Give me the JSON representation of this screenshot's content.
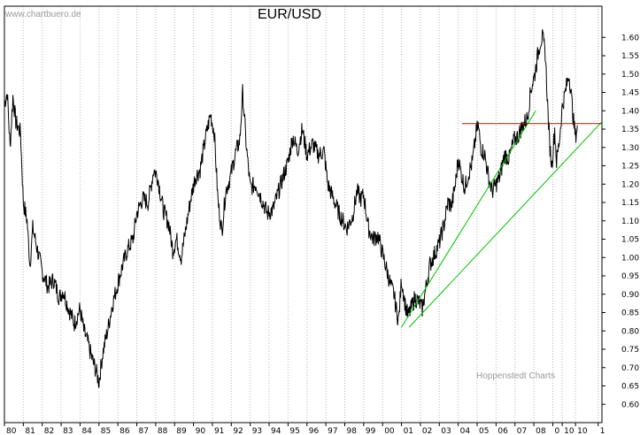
{
  "chart_data": {
    "type": "line",
    "title": "EUR/USD",
    "watermark": "www.chartbuero.de",
    "credit": "Hoppenstedt Charts",
    "xlabel": "",
    "ylabel": "",
    "xlim": [
      1980.0,
      2011.6
    ],
    "ylim": [
      0.55,
      1.685
    ],
    "y_ticks": [
      "0.60",
      "0.65",
      "0.70",
      "0.75",
      "0.80",
      "0.85",
      "0.90",
      "0.95",
      "1.00",
      "1.05",
      "1.10",
      "1.15",
      "1.20",
      "1.25",
      "1.30",
      "1.35",
      "1.40",
      "1.45",
      "1.50",
      "1.55",
      "1.60"
    ],
    "x_ticks": [
      {
        "v": 1980,
        "label": "80"
      },
      {
        "v": 1981,
        "label": "81"
      },
      {
        "v": 1982,
        "label": "82"
      },
      {
        "v": 1983,
        "label": "83"
      },
      {
        "v": 1984,
        "label": "84"
      },
      {
        "v": 1985,
        "label": "85"
      },
      {
        "v": 1986,
        "label": "86"
      },
      {
        "v": 1987,
        "label": "87"
      },
      {
        "v": 1988,
        "label": "88"
      },
      {
        "v": 1989,
        "label": "89"
      },
      {
        "v": 1990,
        "label": "90"
      },
      {
        "v": 1991,
        "label": "91"
      },
      {
        "v": 1992,
        "label": "92"
      },
      {
        "v": 1993,
        "label": "93"
      },
      {
        "v": 1994,
        "label": "94"
      },
      {
        "v": 1995,
        "label": "95"
      },
      {
        "v": 1996,
        "label": "96"
      },
      {
        "v": 1997,
        "label": "97"
      },
      {
        "v": 1998,
        "label": "98"
      },
      {
        "v": 1999,
        "label": "99"
      },
      {
        "v": 2000,
        "label": "00"
      },
      {
        "v": 2001,
        "label": "01"
      },
      {
        "v": 2002,
        "label": "02"
      },
      {
        "v": 2003,
        "label": "03"
      },
      {
        "v": 2004,
        "label": "04"
      },
      {
        "v": 2005,
        "label": "05"
      },
      {
        "v": 2006,
        "label": "06"
      },
      {
        "v": 2007,
        "label": "07"
      },
      {
        "v": 2008,
        "label": "08"
      },
      {
        "v": 2009,
        "label": "0"
      },
      {
        "v": 2009.5,
        "label": "10"
      },
      {
        "v": 2010.2,
        "label": "10"
      },
      {
        "v": 2011.4,
        "label": "1"
      }
    ],
    "grid": {
      "vertical": true,
      "horizontal": false
    },
    "series": [
      {
        "color": "#000000",
        "points": [
          [
            1980.0,
            1.42
          ],
          [
            1980.15,
            1.45
          ],
          [
            1980.3,
            1.3
          ],
          [
            1980.45,
            1.44
          ],
          [
            1980.6,
            1.37
          ],
          [
            1980.85,
            1.34
          ],
          [
            1981.0,
            1.15
          ],
          [
            1981.2,
            1.1
          ],
          [
            1981.35,
            0.98
          ],
          [
            1981.5,
            1.08
          ],
          [
            1981.75,
            1.02
          ],
          [
            1982.0,
            0.96
          ],
          [
            1982.3,
            0.92
          ],
          [
            1982.6,
            0.94
          ],
          [
            1982.9,
            0.89
          ],
          [
            1983.1,
            0.91
          ],
          [
            1983.4,
            0.86
          ],
          [
            1983.7,
            0.82
          ],
          [
            1984.0,
            0.86
          ],
          [
            1984.2,
            0.8
          ],
          [
            1984.4,
            0.77
          ],
          [
            1984.6,
            0.73
          ],
          [
            1984.85,
            0.69
          ],
          [
            1985.0,
            0.66
          ],
          [
            1985.2,
            0.74
          ],
          [
            1985.45,
            0.8
          ],
          [
            1985.7,
            0.87
          ],
          [
            1985.95,
            0.92
          ],
          [
            1986.2,
            0.97
          ],
          [
            1986.5,
            1.02
          ],
          [
            1986.8,
            1.05
          ],
          [
            1987.0,
            1.12
          ],
          [
            1987.3,
            1.16
          ],
          [
            1987.6,
            1.15
          ],
          [
            1987.9,
            1.24
          ],
          [
            1988.1,
            1.22
          ],
          [
            1988.4,
            1.13
          ],
          [
            1988.7,
            1.09
          ],
          [
            1988.9,
            1.02
          ],
          [
            1989.1,
            1.05
          ],
          [
            1989.35,
            1.0
          ],
          [
            1989.6,
            1.08
          ],
          [
            1989.85,
            1.16
          ],
          [
            1990.1,
            1.22
          ],
          [
            1990.35,
            1.24
          ],
          [
            1990.65,
            1.33
          ],
          [
            1990.9,
            1.39
          ],
          [
            1991.1,
            1.34
          ],
          [
            1991.3,
            1.15
          ],
          [
            1991.5,
            1.07
          ],
          [
            1991.7,
            1.18
          ],
          [
            1991.95,
            1.22
          ],
          [
            1992.2,
            1.28
          ],
          [
            1992.45,
            1.32
          ],
          [
            1992.6,
            1.45
          ],
          [
            1992.8,
            1.3
          ],
          [
            1993.0,
            1.19
          ],
          [
            1993.3,
            1.2
          ],
          [
            1993.6,
            1.16
          ],
          [
            1993.9,
            1.12
          ],
          [
            1994.2,
            1.13
          ],
          [
            1994.5,
            1.18
          ],
          [
            1994.8,
            1.23
          ],
          [
            1995.0,
            1.26
          ],
          [
            1995.25,
            1.33
          ],
          [
            1995.5,
            1.29
          ],
          [
            1995.75,
            1.35
          ],
          [
            1996.0,
            1.28
          ],
          [
            1996.3,
            1.31
          ],
          [
            1996.6,
            1.28
          ],
          [
            1996.9,
            1.29
          ],
          [
            1997.1,
            1.2
          ],
          [
            1997.4,
            1.16
          ],
          [
            1997.7,
            1.12
          ],
          [
            1997.9,
            1.1
          ],
          [
            1998.1,
            1.08
          ],
          [
            1998.4,
            1.11
          ],
          [
            1998.65,
            1.18
          ],
          [
            1998.85,
            1.16
          ],
          [
            1999.0,
            1.17
          ],
          [
            1999.25,
            1.08
          ],
          [
            1999.5,
            1.05
          ],
          [
            1999.75,
            1.06
          ],
          [
            2000.0,
            1.01
          ],
          [
            2000.25,
            0.96
          ],
          [
            2000.45,
            0.92
          ],
          [
            2000.6,
            0.9
          ],
          [
            2000.75,
            0.85
          ],
          [
            2000.85,
            0.83
          ],
          [
            2001.0,
            0.94
          ],
          [
            2001.2,
            0.87
          ],
          [
            2001.35,
            0.84
          ],
          [
            2001.5,
            0.86
          ],
          [
            2001.7,
            0.89
          ],
          [
            2001.9,
            0.88
          ],
          [
            2002.1,
            0.86
          ],
          [
            2002.3,
            0.92
          ],
          [
            2002.5,
            0.98
          ],
          [
            2002.75,
            1.01
          ],
          [
            2003.0,
            1.04
          ],
          [
            2003.25,
            1.09
          ],
          [
            2003.45,
            1.15
          ],
          [
            2003.65,
            1.14
          ],
          [
            2003.85,
            1.2
          ],
          [
            2004.0,
            1.27
          ],
          [
            2004.15,
            1.23
          ],
          [
            2004.35,
            1.19
          ],
          [
            2004.55,
            1.23
          ],
          [
            2004.75,
            1.26
          ],
          [
            2004.95,
            1.34
          ],
          [
            2005.05,
            1.36
          ],
          [
            2005.2,
            1.3
          ],
          [
            2005.4,
            1.28
          ],
          [
            2005.6,
            1.22
          ],
          [
            2005.8,
            1.18
          ],
          [
            2006.0,
            1.2
          ],
          [
            2006.2,
            1.22
          ],
          [
            2006.45,
            1.28
          ],
          [
            2006.7,
            1.27
          ],
          [
            2006.95,
            1.32
          ],
          [
            2007.15,
            1.33
          ],
          [
            2007.4,
            1.36
          ],
          [
            2007.65,
            1.38
          ],
          [
            2007.85,
            1.46
          ],
          [
            2008.05,
            1.5
          ],
          [
            2008.2,
            1.55
          ],
          [
            2008.35,
            1.59
          ],
          [
            2008.45,
            1.6
          ],
          [
            2008.6,
            1.56
          ],
          [
            2008.75,
            1.39
          ],
          [
            2008.85,
            1.3
          ],
          [
            2008.95,
            1.25
          ],
          [
            2009.1,
            1.35
          ],
          [
            2009.2,
            1.26
          ],
          [
            2009.35,
            1.32
          ],
          [
            2009.5,
            1.41
          ],
          [
            2009.7,
            1.46
          ],
          [
            2009.85,
            1.5
          ],
          [
            2009.95,
            1.46
          ],
          [
            2010.1,
            1.37
          ],
          [
            2010.2,
            1.33
          ],
          [
            2010.3,
            1.36
          ]
        ]
      }
    ],
    "trendlines": [
      {
        "color": "#00c000",
        "from": [
          2001.0,
          0.81
        ],
        "to": [
          2008.1,
          1.4
        ]
      },
      {
        "color": "#00c000",
        "from": [
          2001.4,
          0.81
        ],
        "to": [
          2011.6,
          1.37
        ]
      }
    ],
    "hlines": [
      {
        "color": "#d00000",
        "y": 1.365,
        "from": 2004.2,
        "to": 2011.6
      }
    ]
  }
}
